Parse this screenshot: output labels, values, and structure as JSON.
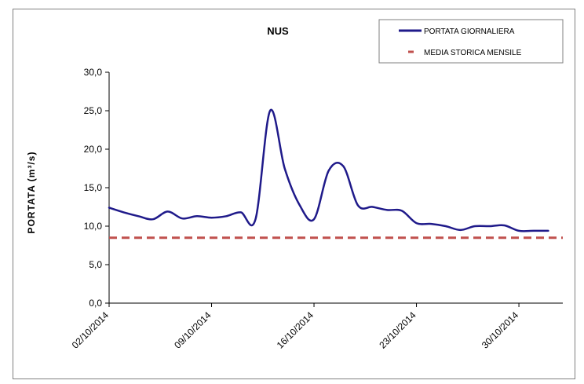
{
  "chart_data": {
    "type": "line",
    "title": "NUS",
    "xlabel": "",
    "ylabel": "PORTATA (m³/s)",
    "ylim": [
      0,
      30
    ],
    "yticks": [
      "0,0",
      "5,0",
      "10,0",
      "15,0",
      "20,0",
      "25,0",
      "30,0"
    ],
    "xlim": [
      "2014-10-02",
      "2014-11-02"
    ],
    "xticks": [
      {
        "date": "2014-10-02",
        "label": "02/10/2014"
      },
      {
        "date": "2014-10-09",
        "label": "09/10/2014"
      },
      {
        "date": "2014-10-16",
        "label": "16/10/2014"
      },
      {
        "date": "2014-10-23",
        "label": "23/10/2014"
      },
      {
        "date": "2014-10-30",
        "label": "30/10/2014"
      }
    ],
    "grid": false,
    "legend_position": "top-right",
    "series": [
      {
        "name": "PORTATA GIORNALIERA",
        "style": "solid",
        "color": "#1f1a8a",
        "x": [
          "2014-10-02",
          "2014-10-03",
          "2014-10-04",
          "2014-10-05",
          "2014-10-06",
          "2014-10-07",
          "2014-10-08",
          "2014-10-09",
          "2014-10-10",
          "2014-10-11",
          "2014-10-12",
          "2014-10-13",
          "2014-10-14",
          "2014-10-15",
          "2014-10-16",
          "2014-10-17",
          "2014-10-18",
          "2014-10-19",
          "2014-10-20",
          "2014-10-21",
          "2014-10-22",
          "2014-10-23",
          "2014-10-24",
          "2014-10-25",
          "2014-10-26",
          "2014-10-27",
          "2014-10-28",
          "2014-10-29",
          "2014-10-30",
          "2014-10-31",
          "2014-11-01"
        ],
        "values": [
          12.4,
          11.8,
          11.3,
          10.9,
          11.9,
          11.0,
          11.3,
          11.1,
          11.3,
          11.8,
          10.9,
          25.0,
          17.5,
          12.8,
          10.9,
          17.2,
          17.8,
          12.7,
          12.5,
          12.1,
          12.0,
          10.4,
          10.3,
          10.0,
          9.5,
          10.0,
          10.0,
          10.1,
          9.4,
          9.4,
          9.4
        ]
      },
      {
        "name": "MEDIA STORICA MENSILE",
        "style": "dashed",
        "color": "#c0504d",
        "x": [
          "2014-10-02",
          "2014-11-02"
        ],
        "values": [
          8.5,
          8.5
        ]
      }
    ]
  }
}
